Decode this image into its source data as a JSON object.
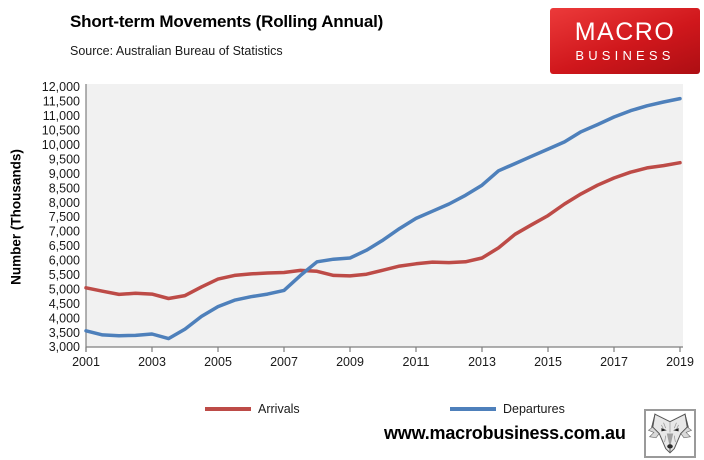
{
  "header": {
    "logo": {
      "line1": "MACRO",
      "line2": "BUSINESS",
      "bg_top": "#ec3a3a",
      "bg_bottom": "#ad0e13"
    }
  },
  "footer": {
    "url": "www.macrobusiness.com.au",
    "wolf_icon": "wolf-head-logo"
  },
  "chart_data": {
    "type": "line",
    "title": "Short-term Movements (Rolling Annual)",
    "source": "Source: Australian Bureau of Statistics",
    "ylabel": "Number (Thousands)",
    "xlabel": "",
    "ylim": [
      3000,
      12000
    ],
    "xlim": [
      2001,
      2019.1
    ],
    "grid": false,
    "plot_bg": "#f1f1f1",
    "axis_color": "#7f7f7f",
    "tick_text_color": "#1a1a1a",
    "legend_position": "bottom",
    "y_ticks": [
      12000,
      11500,
      11000,
      10500,
      10000,
      9500,
      9000,
      8500,
      8000,
      7500,
      7000,
      6500,
      6000,
      5500,
      5000,
      4500,
      4000,
      3500,
      3000
    ],
    "y_tick_labels": [
      "12,000",
      "11,500",
      "11,000",
      "10,500",
      "10,000",
      "9,500",
      "9,000",
      "8,500",
      "8,000",
      "7,500",
      "7,000",
      "6,500",
      "6,000",
      "5,500",
      "5,000",
      "4,500",
      "4,000",
      "3,500",
      "3,000"
    ],
    "x_ticks": [
      2001,
      2003,
      2005,
      2007,
      2009,
      2011,
      2013,
      2015,
      2017,
      2019
    ],
    "x_tick_labels": [
      "2001",
      "2003",
      "2005",
      "2007",
      "2009",
      "2011",
      "2013",
      "2015",
      "2017",
      "2019"
    ],
    "x": [
      2001,
      2001.5,
      2002,
      2002.5,
      2003,
      2003.5,
      2004,
      2004.5,
      2005,
      2005.5,
      2006,
      2006.5,
      2007,
      2007.5,
      2008,
      2008.5,
      2009,
      2009.5,
      2010,
      2010.5,
      2011,
      2011.5,
      2012,
      2012.5,
      2013,
      2013.5,
      2014,
      2014.5,
      2015,
      2015.5,
      2016,
      2016.5,
      2017,
      2017.5,
      2018,
      2018.5,
      2019
    ],
    "series": [
      {
        "name": "Arrivals",
        "color": "#bd4b47",
        "values": [
          5050,
          4930,
          4820,
          4860,
          4830,
          4680,
          4780,
          5080,
          5350,
          5480,
          5530,
          5560,
          5580,
          5650,
          5620,
          5480,
          5460,
          5520,
          5660,
          5800,
          5880,
          5940,
          5920,
          5950,
          6080,
          6430,
          6900,
          7230,
          7550,
          7950,
          8300,
          8600,
          8850,
          9050,
          9200,
          9280,
          9380
        ]
      },
      {
        "name": "Departures",
        "color": "#4e80bb",
        "values": [
          3560,
          3420,
          3390,
          3400,
          3450,
          3290,
          3620,
          4060,
          4400,
          4620,
          4740,
          4830,
          4960,
          5480,
          5950,
          6040,
          6080,
          6350,
          6700,
          7100,
          7450,
          7700,
          7950,
          8250,
          8600,
          9100,
          9350,
          9600,
          9850,
          10100,
          10450,
          10700,
          10960,
          11180,
          11350,
          11480,
          11600
        ]
      }
    ]
  }
}
